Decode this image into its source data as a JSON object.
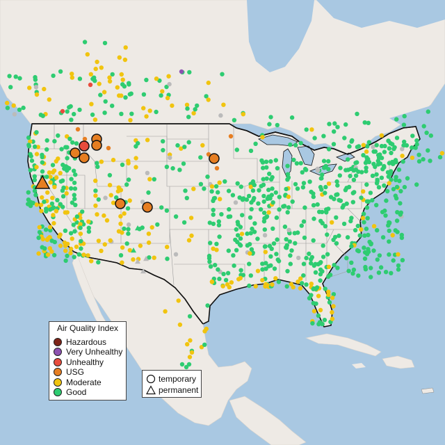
{
  "legend": {
    "title": "Air Quality Index",
    "categories": [
      {
        "label": "Hazardous",
        "color": "#7e2418"
      },
      {
        "label": "Very Unhealthy",
        "color": "#8d52b0"
      },
      {
        "label": "Unhealthy",
        "color": "#e84c3d"
      },
      {
        "label": "USG",
        "color": "#e67e22"
      },
      {
        "label": "Moderate",
        "color": "#f1c40f"
      },
      {
        "label": "Good",
        "color": "#2ecc71"
      }
    ]
  },
  "monitor_types": {
    "temporary": "temporary",
    "permanent": "permanent"
  },
  "colors": {
    "water": "#a9c8e2",
    "land": "#eeeae5",
    "no_data": "#bbbbbb"
  }
}
